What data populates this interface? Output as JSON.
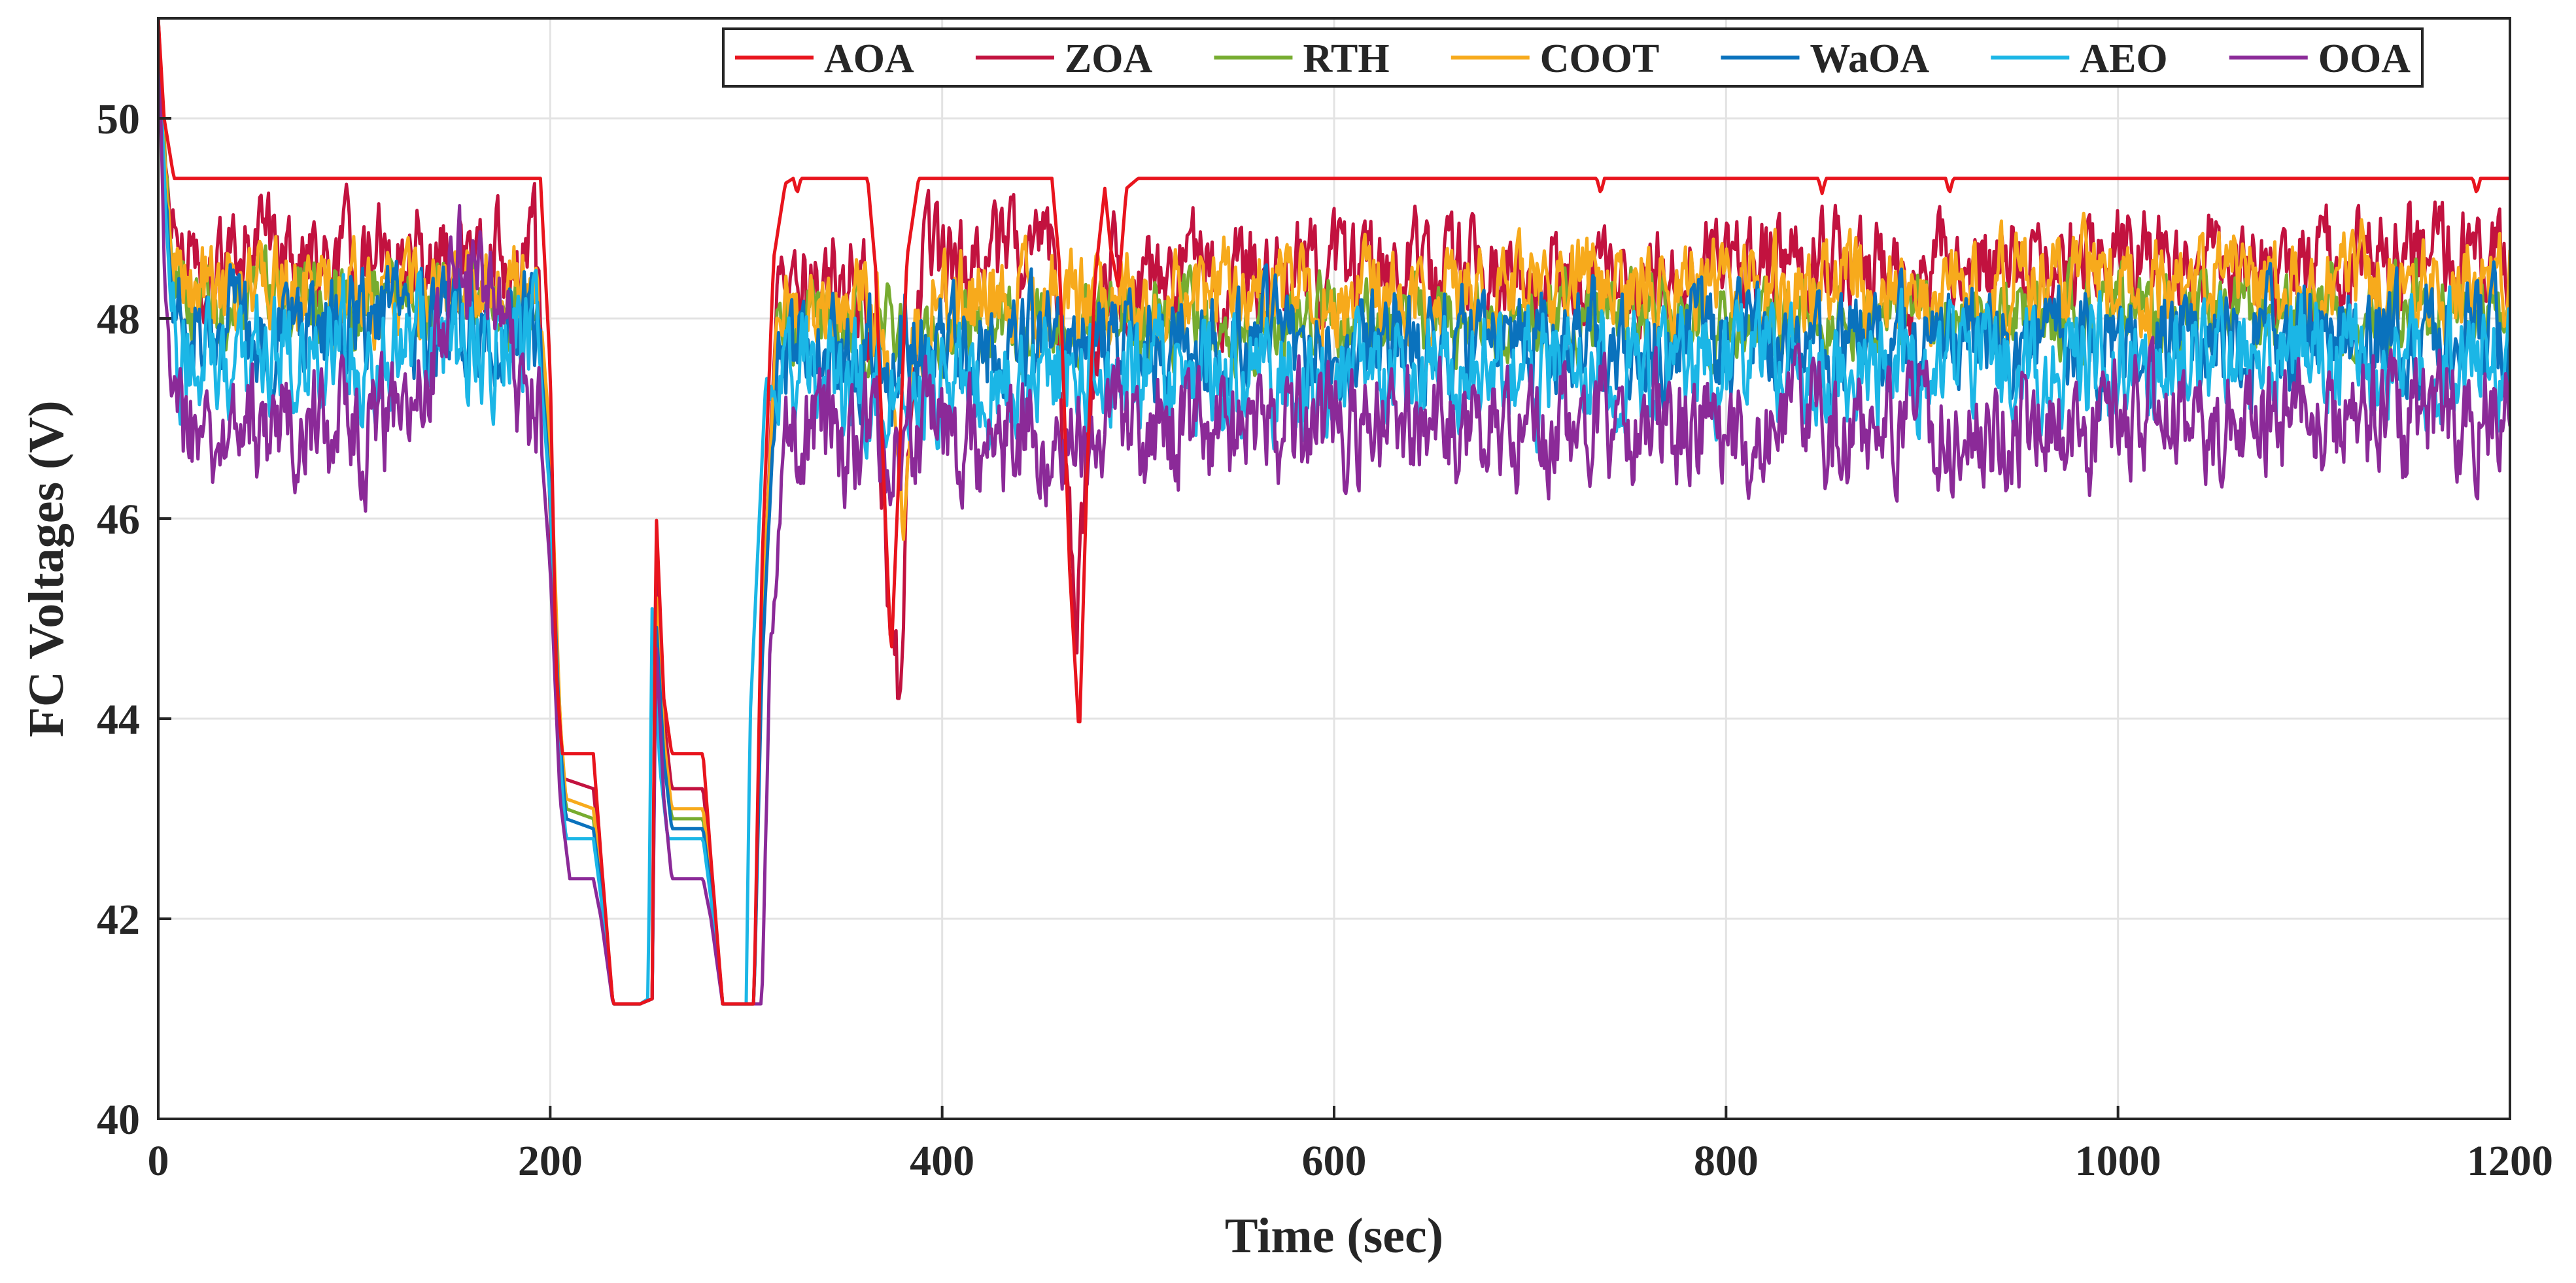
{
  "chart_data": {
    "type": "line",
    "title": "",
    "xlabel": "Time (sec)",
    "ylabel": "FC Voltages (V)",
    "xlim": [
      0,
      1200
    ],
    "ylim": [
      40,
      51
    ],
    "xticks": [
      0,
      200,
      400,
      600,
      800,
      1000,
      1200
    ],
    "xtick_labels": [
      "0",
      "200",
      "400",
      "600",
      "800",
      "1000",
      "1200"
    ],
    "yticks": [
      40,
      42,
      44,
      46,
      48,
      50
    ],
    "ytick_labels": [
      "40",
      "42",
      "44",
      "46",
      "48",
      "50"
    ],
    "grid": true,
    "legend_position": "top-right",
    "legend_orientation": "horizontal",
    "series": [
      {
        "name": "AOA",
        "color": "#e8141d",
        "noise": 0.0,
        "amp": 0.0,
        "points": [
          [
            0,
            51
          ],
          [
            3,
            50
          ],
          [
            8,
            49.4
          ],
          [
            195,
            49.4
          ],
          [
            200,
            47.5
          ],
          [
            203,
            44.5
          ],
          [
            206,
            43.65
          ],
          [
            222,
            43.65
          ],
          [
            226,
            42.6
          ],
          [
            232,
            41.15
          ],
          [
            246,
            41.15
          ],
          [
            252,
            41.2
          ],
          [
            254,
            46.1
          ],
          [
            258,
            44.2
          ],
          [
            262,
            43.65
          ],
          [
            278,
            43.65
          ],
          [
            282,
            42.6
          ],
          [
            288,
            41.15
          ],
          [
            304,
            41.15
          ],
          [
            308,
            45.5
          ],
          [
            314,
            48.6
          ],
          [
            320,
            49.35
          ],
          [
            324,
            49.4
          ],
          [
            326,
            49.25
          ],
          [
            328,
            49.4
          ],
          [
            362,
            49.4
          ],
          [
            366,
            48.5
          ],
          [
            370,
            46.5
          ],
          [
            374,
            44.6
          ],
          [
            378,
            46.5
          ],
          [
            382,
            48.6
          ],
          [
            388,
            49.4
          ],
          [
            456,
            49.4
          ],
          [
            460,
            48.5
          ],
          [
            465,
            45.5
          ],
          [
            470,
            43.8
          ],
          [
            474,
            46.5
          ],
          [
            478,
            48.4
          ],
          [
            483,
            49.3
          ],
          [
            486,
            48.7
          ],
          [
            490,
            48.3
          ],
          [
            494,
            49.3
          ],
          [
            500,
            49.4
          ],
          [
            734,
            49.4
          ],
          [
            736,
            49.25
          ],
          [
            738,
            49.4
          ],
          [
            847,
            49.4
          ],
          [
            849,
            49.25
          ],
          [
            851,
            49.4
          ],
          [
            912,
            49.4
          ],
          [
            914,
            49.25
          ],
          [
            916,
            49.4
          ],
          [
            1181,
            49.4
          ],
          [
            1183,
            49.25
          ],
          [
            1185,
            49.4
          ],
          [
            1200,
            49.4
          ]
        ]
      },
      {
        "name": "ZOA",
        "color": "#c2123f",
        "noise": 0.42,
        "amp": 1.0,
        "points": [
          [
            0,
            51
          ],
          [
            4,
            49.5
          ],
          [
            10,
            48.6
          ],
          [
            192,
            48.6
          ],
          [
            198,
            47.2
          ],
          [
            203,
            44.3
          ],
          [
            207,
            43.4
          ],
          [
            222,
            43.3
          ],
          [
            226,
            42.5
          ],
          [
            232,
            41.15
          ],
          [
            246,
            41.15
          ],
          [
            252,
            41.2
          ],
          [
            254,
            45.8
          ],
          [
            258,
            44
          ],
          [
            262,
            43.3
          ],
          [
            278,
            43.3
          ],
          [
            282,
            42.5
          ],
          [
            288,
            41.15
          ],
          [
            304,
            41.15
          ],
          [
            308,
            45
          ],
          [
            316,
            48.2
          ],
          [
            360,
            48.4
          ],
          [
            366,
            47.5
          ],
          [
            372,
            45.6
          ],
          [
            378,
            44.3
          ],
          [
            383,
            46.6
          ],
          [
            390,
            48.5
          ],
          [
            456,
            48.6
          ],
          [
            462,
            47
          ],
          [
            468,
            44.5
          ],
          [
            474,
            46.8
          ],
          [
            482,
            48.4
          ],
          [
            1200,
            48.6
          ]
        ]
      },
      {
        "name": "RTH",
        "color": "#77ac30",
        "noise": 0.32,
        "amp": 1.0,
        "points": [
          [
            0,
            51
          ],
          [
            4,
            49.3
          ],
          [
            10,
            48.2
          ],
          [
            194,
            48.2
          ],
          [
            200,
            46.5
          ],
          [
            205,
            44
          ],
          [
            208,
            43.1
          ],
          [
            222,
            43
          ],
          [
            226,
            42.4
          ],
          [
            232,
            41.15
          ],
          [
            246,
            41.15
          ],
          [
            252,
            41.2
          ],
          [
            254,
            45.2
          ],
          [
            258,
            43.8
          ],
          [
            262,
            43
          ],
          [
            278,
            43
          ],
          [
            282,
            42.4
          ],
          [
            288,
            41.15
          ],
          [
            304,
            41.15
          ],
          [
            308,
            44.8
          ],
          [
            316,
            47.9
          ],
          [
            1200,
            48.1
          ]
        ]
      },
      {
        "name": "COOT",
        "color": "#f7aa1c",
        "noise": 0.4,
        "amp": 1.0,
        "points": [
          [
            0,
            51
          ],
          [
            4,
            49.2
          ],
          [
            10,
            48.3
          ],
          [
            194,
            48.3
          ],
          [
            200,
            46.8
          ],
          [
            205,
            44
          ],
          [
            208,
            43.2
          ],
          [
            222,
            43.1
          ],
          [
            226,
            42.4
          ],
          [
            232,
            41.15
          ],
          [
            246,
            41.15
          ],
          [
            252,
            41.2
          ],
          [
            254,
            45.3
          ],
          [
            258,
            43.8
          ],
          [
            262,
            43.1
          ],
          [
            278,
            43.1
          ],
          [
            282,
            42.4
          ],
          [
            288,
            41.15
          ],
          [
            304,
            41.15
          ],
          [
            308,
            44.8
          ],
          [
            316,
            48.1
          ],
          [
            370,
            48.2
          ],
          [
            376,
            47
          ],
          [
            380,
            45.6
          ],
          [
            385,
            47.5
          ],
          [
            392,
            48.2
          ],
          [
            1200,
            48.4
          ]
        ]
      },
      {
        "name": "WaOA",
        "color": "#0a72bd",
        "noise": 0.45,
        "amp": 1.0,
        "points": [
          [
            0,
            51
          ],
          [
            4,
            49
          ],
          [
            10,
            47.9
          ],
          [
            194,
            47.9
          ],
          [
            200,
            46.3
          ],
          [
            205,
            43.8
          ],
          [
            208,
            43
          ],
          [
            222,
            42.9
          ],
          [
            226,
            42.3
          ],
          [
            232,
            41.15
          ],
          [
            246,
            41.15
          ],
          [
            252,
            41.2
          ],
          [
            254,
            45
          ],
          [
            258,
            43.6
          ],
          [
            262,
            42.9
          ],
          [
            278,
            42.9
          ],
          [
            282,
            42.3
          ],
          [
            288,
            41.15
          ],
          [
            304,
            41.15
          ],
          [
            308,
            44.5
          ],
          [
            316,
            47.7
          ],
          [
            1200,
            47.8
          ]
        ]
      },
      {
        "name": "AEO",
        "color": "#1bb6e6",
        "noise": 0.48,
        "amp": 1.0,
        "points": [
          [
            0,
            51
          ],
          [
            4,
            48.8
          ],
          [
            10,
            47.7
          ],
          [
            194,
            47.7
          ],
          [
            200,
            46.2
          ],
          [
            205,
            43.6
          ],
          [
            208,
            42.8
          ],
          [
            222,
            42.8
          ],
          [
            226,
            42.2
          ],
          [
            232,
            41.15
          ],
          [
            246,
            41.15
          ],
          [
            250,
            41.2
          ],
          [
            252,
            45.1
          ],
          [
            256,
            43.5
          ],
          [
            260,
            42.8
          ],
          [
            278,
            42.8
          ],
          [
            282,
            42.2
          ],
          [
            288,
            41.15
          ],
          [
            300,
            41.15
          ],
          [
            302,
            44
          ],
          [
            310,
            47.4
          ],
          [
            1200,
            47.6
          ]
        ]
      },
      {
        "name": "OOA",
        "color": "#8b2a98",
        "noise": 0.48,
        "amp": 1.0,
        "points": [
          [
            0,
            51
          ],
          [
            4,
            48
          ],
          [
            10,
            46.9
          ],
          [
            130,
            46.9
          ],
          [
            140,
            47.6
          ],
          [
            150,
            48.6
          ],
          [
            172,
            48.2
          ],
          [
            186,
            47.1
          ],
          [
            194,
            47.1
          ],
          [
            200,
            45.5
          ],
          [
            205,
            43.2
          ],
          [
            210,
            42.4
          ],
          [
            222,
            42.4
          ],
          [
            226,
            42
          ],
          [
            232,
            41.15
          ],
          [
            246,
            41.15
          ],
          [
            252,
            41.2
          ],
          [
            254,
            44.8
          ],
          [
            258,
            43.2
          ],
          [
            262,
            42.4
          ],
          [
            278,
            42.4
          ],
          [
            282,
            42
          ],
          [
            288,
            41.15
          ],
          [
            308,
            41.15
          ],
          [
            312,
            44.5
          ],
          [
            320,
            46.8
          ],
          [
            1200,
            47
          ]
        ]
      }
    ]
  }
}
